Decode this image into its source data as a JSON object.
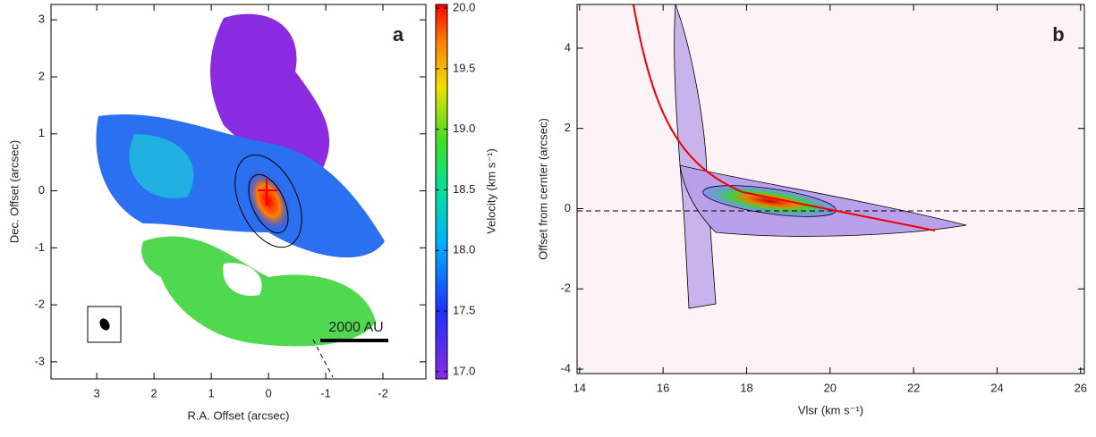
{
  "chart_data": [
    {
      "type": "map",
      "panel_label": "a",
      "xlabel": "R.A. Offset (arcsec)",
      "ylabel": "Dec. Offset (arcsec)",
      "xlim": [
        3.8,
        -2.75
      ],
      "ylim": [
        -3.3,
        3.27
      ],
      "xticks": [
        3,
        2,
        1,
        0,
        -1,
        -2
      ],
      "yticks": [
        -3,
        -2,
        -1,
        0,
        1,
        2,
        3
      ],
      "colorbar": {
        "label": "Velocity (km s⁻¹)",
        "lim": [
          16.94,
          20.03
        ],
        "ticks": [
          {
            "value": 17,
            "label": "17.0"
          },
          {
            "value": 17.5,
            "label": "17.5"
          },
          {
            "value": 18,
            "label": "18.0"
          },
          {
            "value": 18.5,
            "label": "18.5"
          },
          {
            "value": 19,
            "label": "19.0"
          },
          {
            "value": 19.5,
            "label": "19.5"
          },
          {
            "value": 20,
            "label": "20.0"
          }
        ]
      },
      "scale_bar": "2000 AU"
    },
    {
      "type": "pv",
      "panel_label": "b",
      "xlabel": "Vlsr (km s⁻¹)",
      "ylabel": "Offset from cernter (arcsec)",
      "xlim": [
        13.94,
        26.09
      ],
      "ylim": [
        -4.11,
        5.09
      ],
      "xticks": [
        14,
        16,
        18,
        20,
        22,
        24,
        26
      ],
      "yticks": [
        -4,
        -2,
        0,
        2,
        4
      ]
    }
  ]
}
